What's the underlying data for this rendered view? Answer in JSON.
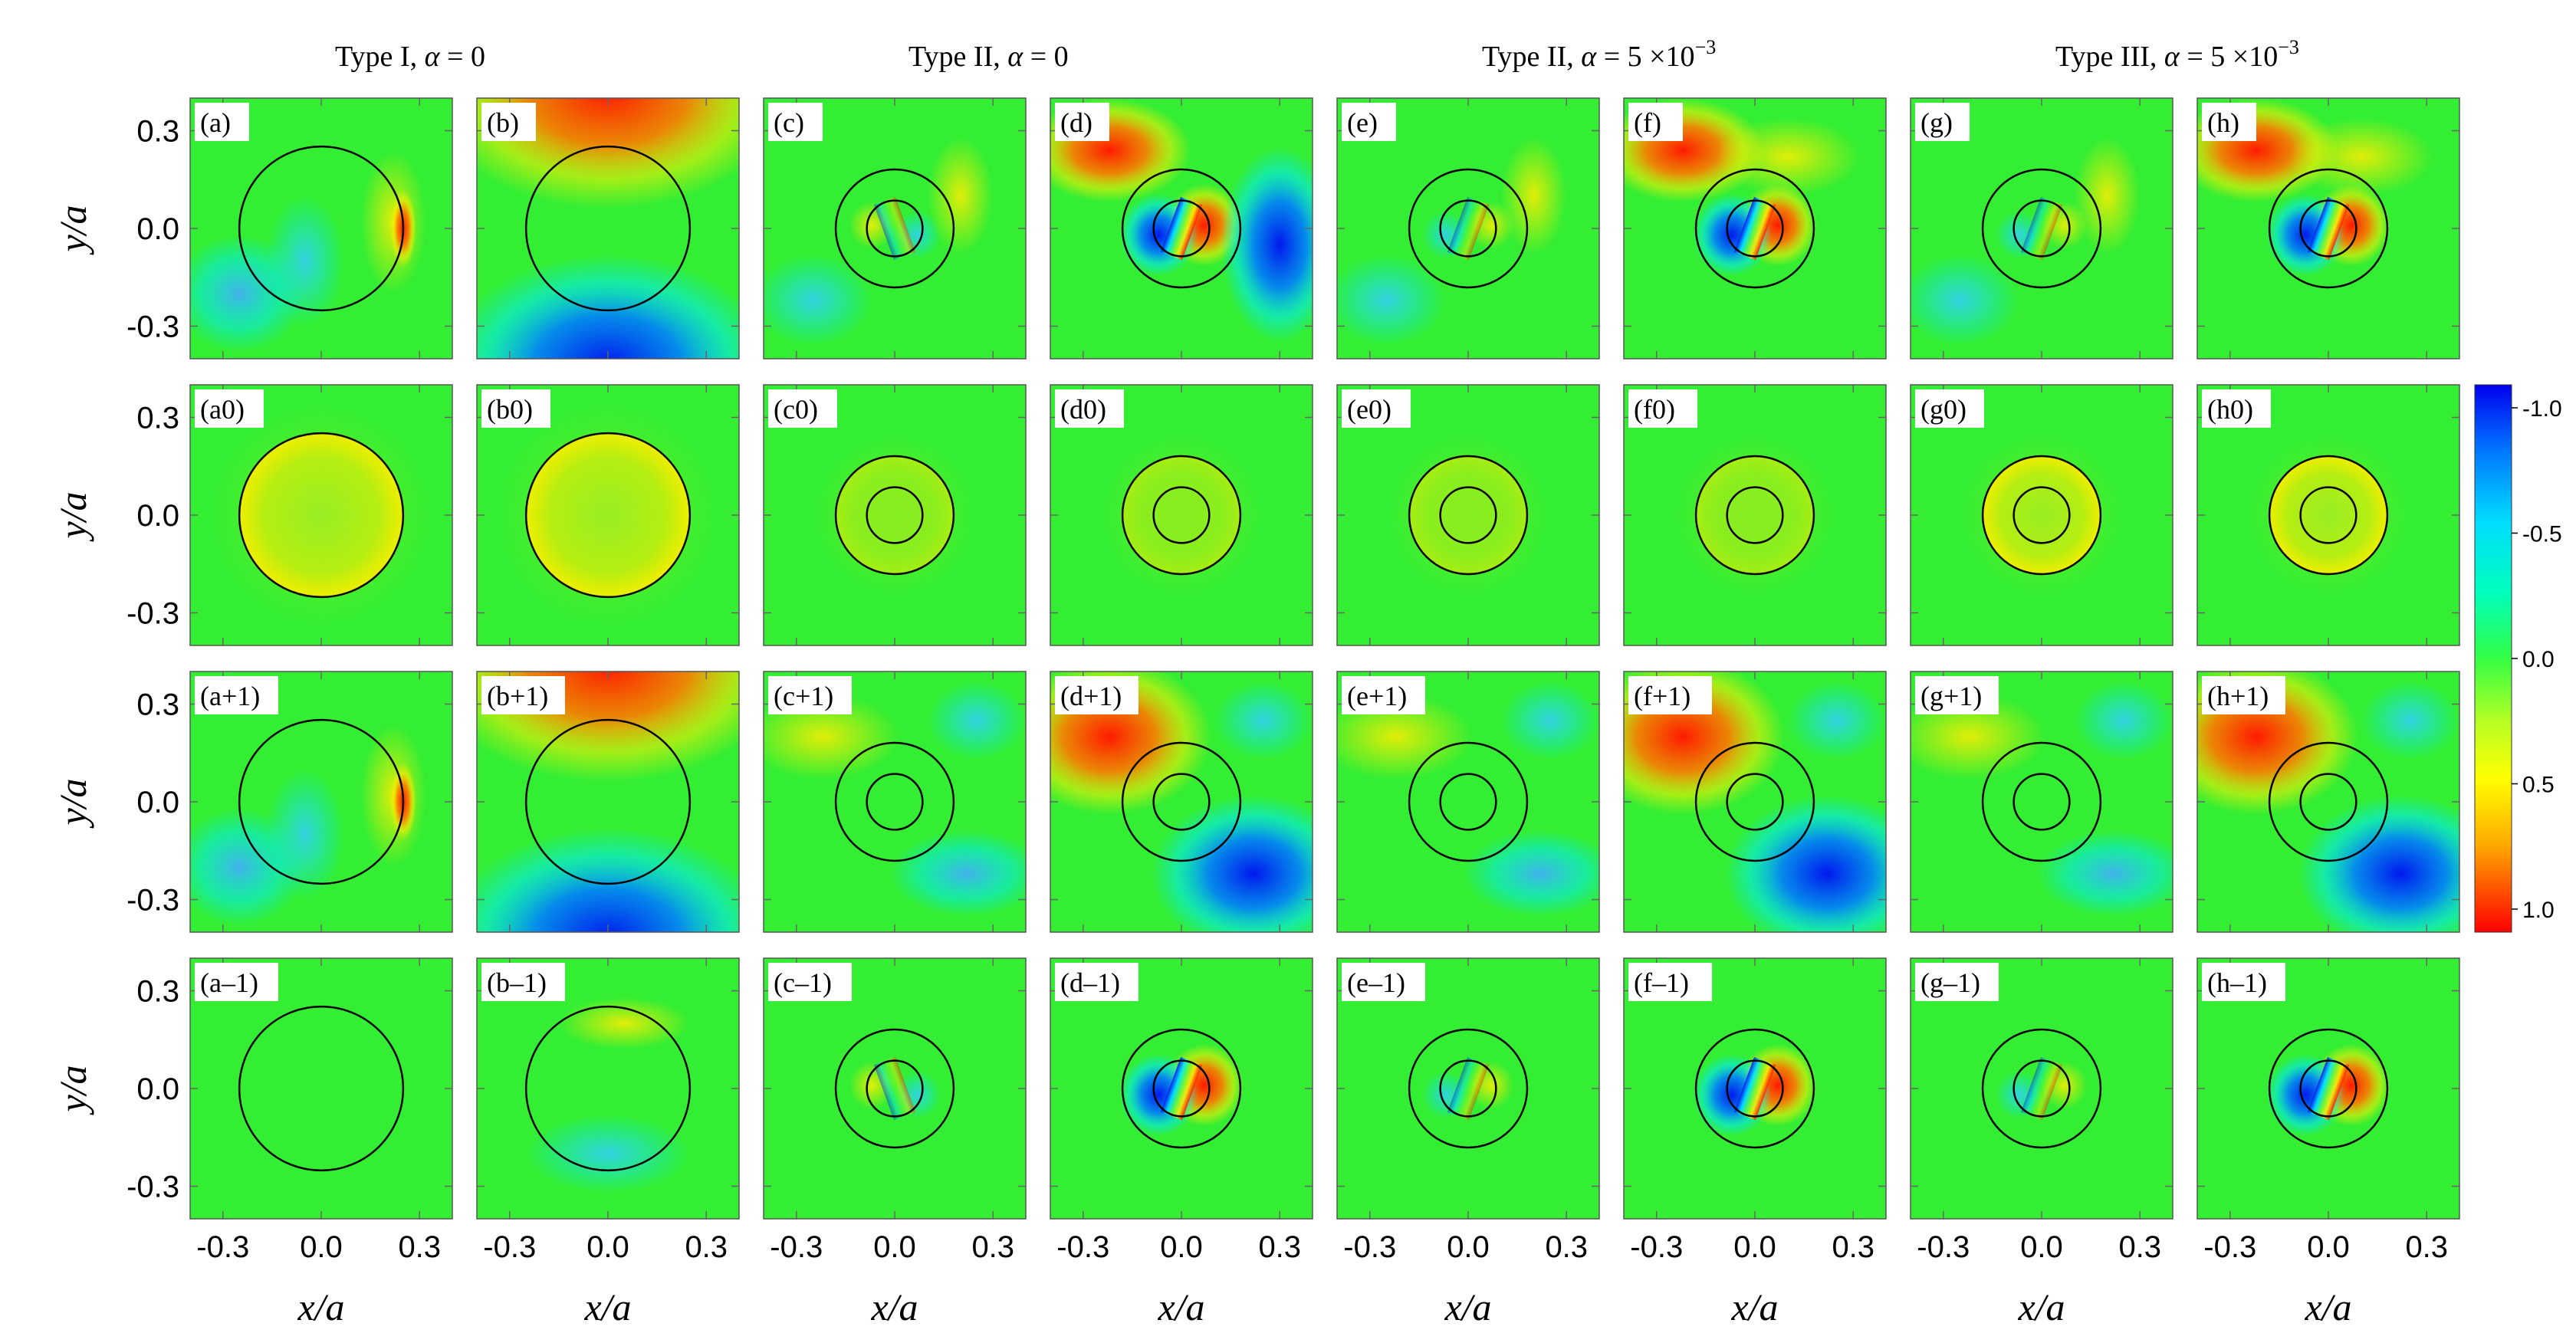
{
  "chart_data": {
    "type": "heatmap",
    "columns": [
      {
        "title_prefix": "Type I, ",
        "alpha_label": "α",
        "alpha_value": " = 0",
        "exponent": ""
      },
      {
        "title_prefix": "Type II, ",
        "alpha_label": "α",
        "alpha_value": " = 0",
        "exponent": ""
      },
      {
        "title_prefix": "Type II, ",
        "alpha_label": "α",
        "alpha_value": " = 5 ×10",
        "exponent": "−3"
      },
      {
        "title_prefix": "Type III, ",
        "alpha_label": "α",
        "alpha_value": " = 5 ×10",
        "exponent": "−3"
      }
    ],
    "rows": [
      "",
      "0",
      "+1",
      "–1"
    ],
    "panel_letters": [
      "a",
      "b",
      "c",
      "d",
      "e",
      "f",
      "g",
      "h"
    ],
    "panel_labels": [
      [
        "(a)",
        "(b)",
        "(c)",
        "(d)",
        "(e)",
        "(f)",
        "(g)",
        "(h)"
      ],
      [
        "(a0)",
        "(b0)",
        "(c0)",
        "(d0)",
        "(e0)",
        "(f0)",
        "(g0)",
        "(h0)"
      ],
      [
        "(a+1)",
        "(b+1)",
        "(c+1)",
        "(d+1)",
        "(e+1)",
        "(f+1)",
        "(g+1)",
        "(h+1)"
      ],
      [
        "(a–1)",
        "(b–1)",
        "(c–1)",
        "(d–1)",
        "(e–1)",
        "(f–1)",
        "(g–1)",
        "(h–1)"
      ]
    ],
    "xlabel": "x/a",
    "ylabel": "y/a",
    "xlim": [
      -0.4,
      0.4
    ],
    "ylim": [
      -0.4,
      0.4
    ],
    "xticks": [
      -0.3,
      0.0,
      0.3
    ],
    "yticks": [
      0.3,
      0.0,
      -0.3
    ],
    "xtick_labels": [
      "-0.3",
      "0.0",
      "0.3"
    ],
    "ytick_labels": [
      "0.3",
      "0.0",
      "-0.3"
    ],
    "outer_circle_radius": [
      0.25,
      0.25,
      0.18,
      0.18,
      0.18,
      0.18,
      0.18,
      0.18
    ],
    "inner_circle_radius": [
      0,
      0,
      0.085,
      0.085,
      0.085,
      0.085,
      0.085,
      0.085
    ],
    "colorbar": {
      "range": [
        -1.0,
        1.0
      ],
      "ticks": [
        "-1.0",
        "-0.5",
        "0.0",
        "0.5",
        "1.0"
      ],
      "colors": [
        "#0000ee",
        "#00aaff",
        "#00ffee",
        "#33ff66",
        "#ccff33",
        "#ffff00",
        "#ffaa00",
        "#ff3300",
        "#ff0000"
      ]
    }
  }
}
